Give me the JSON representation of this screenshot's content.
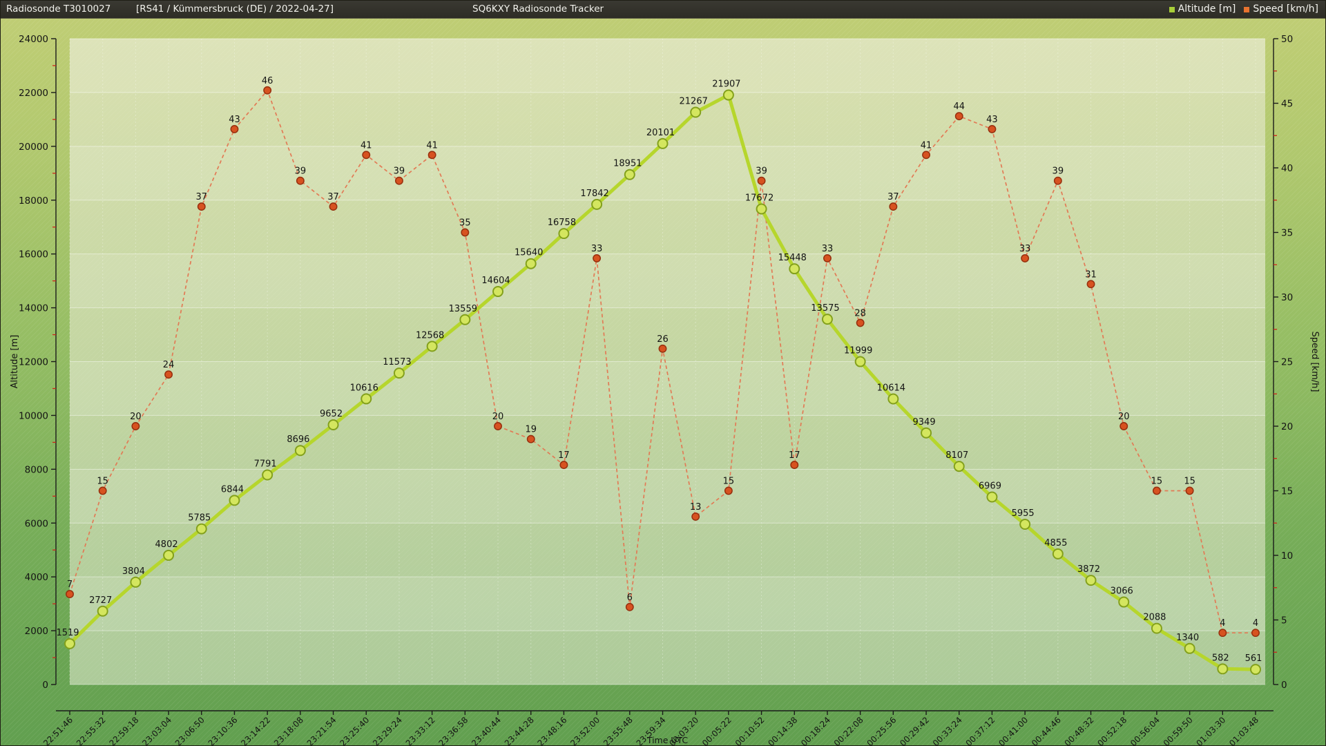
{
  "header": {
    "title": "Radiosonde T3010027",
    "subtitle": "[RS41 / Kümmersbruck (DE) / 2022-04-27]",
    "app_title": "SQ6KXY Radiosonde Tracker",
    "legend": [
      {
        "label": "Altitude [m]",
        "color": "#a8ce38"
      },
      {
        "label": "Speed [km/h]",
        "color": "#e7732f"
      }
    ]
  },
  "chart_data": {
    "type": "line",
    "x": [
      "22:51:46",
      "22:55:32",
      "22:59:18",
      "23:03:04",
      "23:06:50",
      "23:10:36",
      "23:14:22",
      "23:18:08",
      "23:21:54",
      "23:25:40",
      "23:29:24",
      "23:33:12",
      "23:36:58",
      "23:40:44",
      "23:44:28",
      "23:48:16",
      "23:52:00",
      "23:55:48",
      "23:59:34",
      "00:03:20",
      "00:05:22",
      "00:10:52",
      "00:14:38",
      "00:18:24",
      "00:22:08",
      "00:25:56",
      "00:29:42",
      "00:33:24",
      "00:37:12",
      "00:41:00",
      "00:44:46",
      "00:48:32",
      "00:52:18",
      "00:56:04",
      "00:59:50",
      "01:03:30",
      "01:03:48"
    ],
    "xlabel": "Time UTC",
    "legend": [
      "Altitude [m]",
      "Speed [km/h]"
    ],
    "legend_position": "header-top-right",
    "grid": true,
    "series": [
      {
        "name": "Altitude [m]",
        "yaxis": "left",
        "style": "solid",
        "line_color": "#b6d62c",
        "marker_fill": "#d4e65f",
        "marker_stroke": "#83a01c",
        "values": [
          1519,
          2727,
          3804,
          4802,
          5785,
          6844,
          7791,
          8696,
          9652,
          10616,
          11573,
          12568,
          13559,
          14604,
          15640,
          16758,
          17842,
          18951,
          20101,
          21267,
          21907,
          17672,
          15448,
          13575,
          11999,
          10614,
          9349,
          8107,
          6969,
          5955,
          4855,
          3872,
          3066,
          2088,
          1340,
          582,
          561
        ]
      },
      {
        "name": "Speed [km/h]",
        "yaxis": "right",
        "style": "dashed",
        "line_color": "#e27a55",
        "marker_fill": "#d75220",
        "marker_stroke": "#962f0e",
        "values": [
          7,
          15,
          20,
          24,
          37,
          43,
          46,
          39,
          37,
          41,
          39,
          41,
          35,
          20,
          19,
          17,
          33,
          6,
          26,
          13,
          15,
          39,
          17,
          33,
          28,
          37,
          41,
          44,
          43,
          33,
          39,
          31,
          20,
          15,
          15,
          4,
          4
        ]
      }
    ],
    "left_axis": {
      "label": "Altitude [m]",
      "min": 0,
      "max": 24000,
      "major_step": 2000,
      "minor_step": 1000
    },
    "right_axis": {
      "label": "Speed [km/h]",
      "min": 0,
      "max": 50,
      "major_step": 5,
      "minor_step": 2.5
    },
    "tick_color": "#1a1a1a",
    "minor_tick_color": "#cc2419",
    "label_color": "#141414"
  }
}
